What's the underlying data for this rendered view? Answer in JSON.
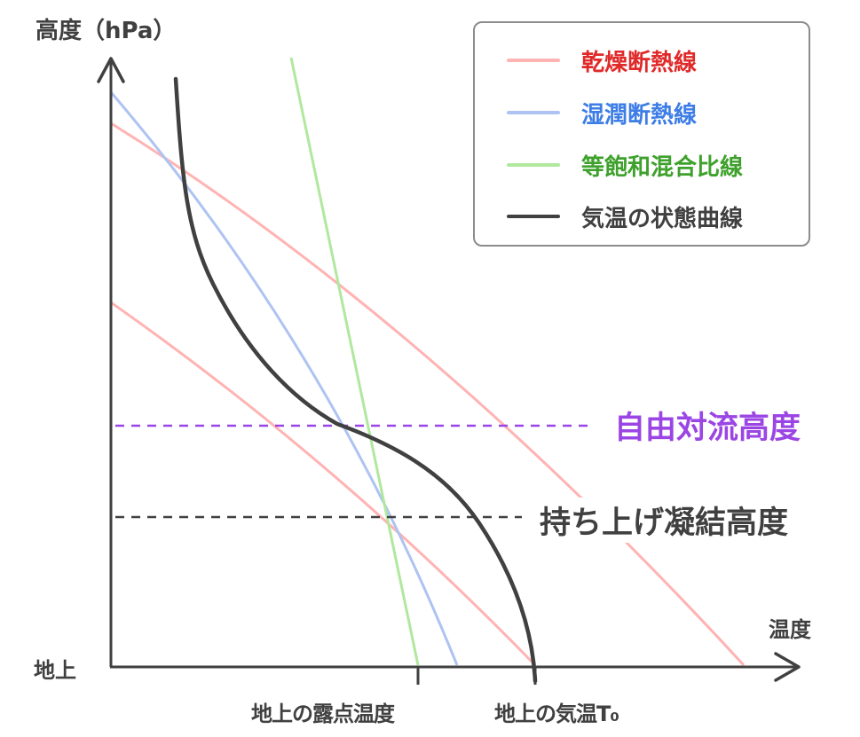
{
  "axes": {
    "y_title": "高度（hPa）",
    "x_title": "温度",
    "ground_label": "地上",
    "dew_point_label": "地上の露点温度",
    "surface_temp_label": "地上の気温T₀"
  },
  "levels": {
    "lfc_label": "自由対流高度",
    "lcl_label": "持ち上げ凝結高度",
    "lfc_color": "#9b45e4",
    "lcl_color": "#404040"
  },
  "legend": {
    "items": [
      {
        "label": "乾燥断熱線",
        "line_color": "#ffb3b3",
        "text_color": "#e02a2a"
      },
      {
        "label": "湿潤断熱線",
        "line_color": "#aec3f2",
        "text_color": "#3d7de6"
      },
      {
        "label": "等飽和混合比線",
        "line_color": "#b0e89e",
        "text_color": "#3ea12c"
      },
      {
        "label": "気温の状態曲線",
        "line_color": "#404040",
        "text_color": "#404040"
      }
    ]
  },
  "colors": {
    "axis": "#404040",
    "dry_adiabat": "#ffb3b3",
    "moist_adiabat": "#aec3f2",
    "mixing_ratio": "#b0e89e",
    "state_curve": "#404040"
  }
}
